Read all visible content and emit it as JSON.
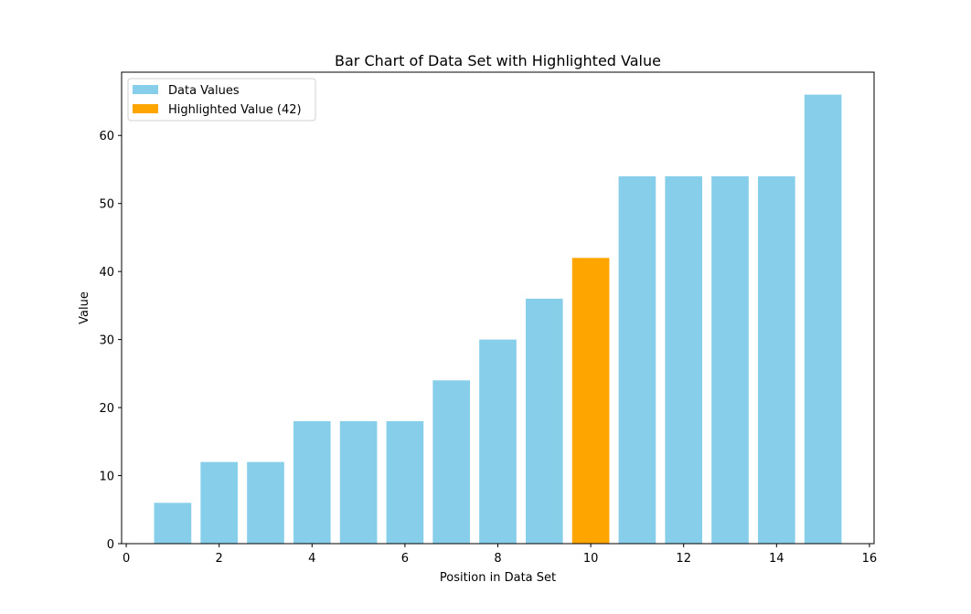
{
  "chart_data": {
    "type": "bar",
    "title": "Bar Chart of Data Set with Highlighted Value",
    "xlabel": "Position in Data Set",
    "ylabel": "Value",
    "x": [
      1,
      2,
      3,
      4,
      5,
      6,
      7,
      8,
      9,
      10,
      11,
      12,
      13,
      14,
      15
    ],
    "values": [
      6,
      12,
      12,
      18,
      18,
      18,
      24,
      30,
      36,
      42,
      54,
      54,
      54,
      54,
      66
    ],
    "highlight_index": 9,
    "xlim": [
      -0.1,
      16.1
    ],
    "ylim": [
      0,
      69.3
    ],
    "xticks": [
      0,
      2,
      4,
      6,
      8,
      10,
      12,
      14,
      16
    ],
    "yticks": [
      0,
      10,
      20,
      30,
      40,
      50,
      60
    ],
    "legend": {
      "placement": "top-left",
      "entries": [
        {
          "label": "Data Values",
          "color": "#87CEEB"
        },
        {
          "label": "Highlighted Value (42)",
          "color": "#FFA500"
        }
      ]
    },
    "colors": {
      "base": "#87CEEB",
      "highlight": "#FFA500"
    },
    "grid": false
  }
}
